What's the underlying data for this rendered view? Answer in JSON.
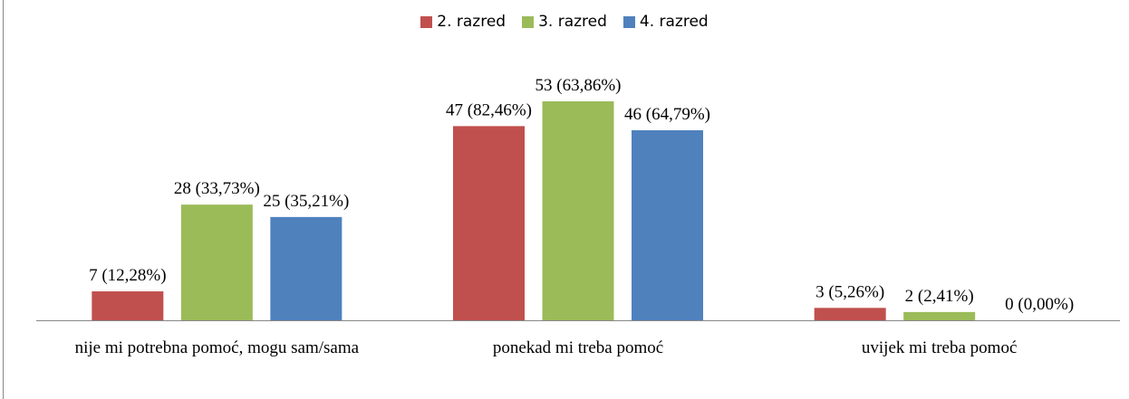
{
  "chart_data": {
    "type": "bar",
    "categories": [
      "nije mi potrebna pomoć, mogu sam/sama",
      "ponekad mi treba pomoć",
      "uvijek mi treba pomoć"
    ],
    "series": [
      {
        "name": "2. razred",
        "color": "#c0504d",
        "values": [
          7,
          47,
          3
        ],
        "value_labels": [
          "7 (12,28%)",
          "47 (82,46%)",
          "3 (5,26%)"
        ]
      },
      {
        "name": "3. razred",
        "color": "#9bbb59",
        "values": [
          28,
          53,
          2
        ],
        "value_labels": [
          "28 (33,73%)",
          "53 (63,86%)",
          "2 (2,41%)"
        ]
      },
      {
        "name": "4. razred",
        "color": "#4f81bd",
        "values": [
          25,
          46,
          0
        ],
        "value_labels": [
          "25 (35,21%)",
          "46 (64,79%)",
          "0 (0,00%)"
        ]
      }
    ],
    "legend": "top"
  }
}
